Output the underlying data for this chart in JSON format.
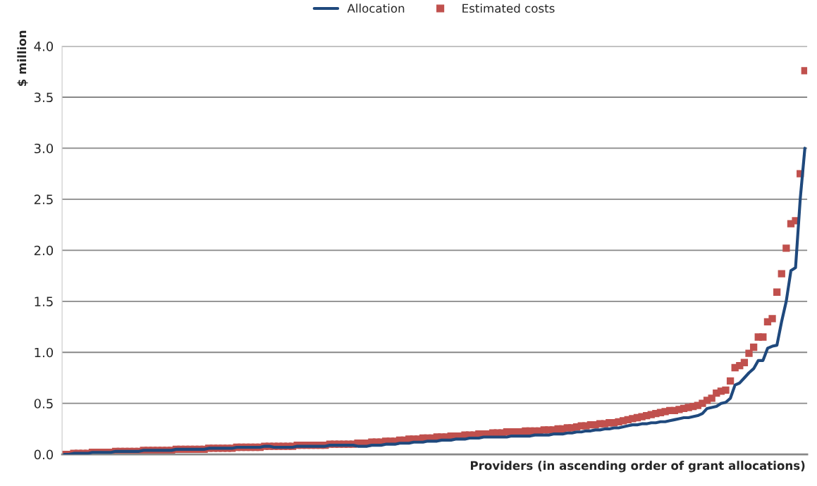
{
  "chart_data": {
    "type": "line",
    "xlabel": "Providers (in ascending order of grant allocations)",
    "ylabel": "$ million",
    "categories": [
      null,
      null,
      null,
      null,
      null,
      null,
      null,
      null,
      null,
      null,
      null,
      null,
      null,
      null,
      null,
      null,
      null,
      null,
      null,
      null,
      null,
      null,
      null,
      null,
      null,
      null,
      null,
      null,
      null,
      null,
      null,
      null,
      null,
      null,
      null,
      null,
      null,
      null,
      null,
      null,
      null,
      null,
      null,
      null,
      null,
      null,
      null,
      null,
      null,
      null,
      null,
      null,
      null,
      null,
      null,
      null,
      null,
      null,
      null,
      null,
      null,
      null,
      null,
      null,
      null,
      null,
      null,
      null,
      null,
      null,
      null,
      null,
      null,
      null,
      null,
      null,
      null,
      null,
      null,
      null,
      null,
      null,
      null,
      null,
      null,
      null,
      null,
      null,
      null,
      null,
      null,
      null,
      null,
      null,
      null,
      null,
      null,
      null,
      null,
      null,
      null,
      null,
      null,
      null,
      null,
      null,
      null,
      null,
      null,
      null,
      null,
      null,
      null,
      null,
      null,
      null,
      null,
      null,
      null,
      null,
      null,
      null,
      null,
      null,
      null,
      null,
      null,
      null,
      null,
      null,
      null,
      null,
      null,
      null,
      null,
      null,
      null,
      null,
      null,
      null,
      null,
      null,
      null,
      null,
      null,
      null,
      null,
      null,
      null,
      null,
      null,
      null,
      null,
      null,
      null,
      null,
      null,
      null,
      null,
      null
    ],
    "series": [
      {
        "name": "Allocation",
        "color": "#1f497d",
        "line_style": "solid",
        "values": [
          0.0,
          0.0,
          0.01,
          0.01,
          0.01,
          0.01,
          0.02,
          0.02,
          0.02,
          0.02,
          0.02,
          0.03,
          0.03,
          0.03,
          0.03,
          0.03,
          0.03,
          0.04,
          0.04,
          0.04,
          0.04,
          0.04,
          0.04,
          0.04,
          0.05,
          0.05,
          0.05,
          0.05,
          0.05,
          0.05,
          0.05,
          0.06,
          0.06,
          0.06,
          0.06,
          0.06,
          0.06,
          0.07,
          0.07,
          0.07,
          0.07,
          0.07,
          0.07,
          0.08,
          0.08,
          0.07,
          0.07,
          0.07,
          0.07,
          0.07,
          0.08,
          0.08,
          0.08,
          0.08,
          0.08,
          0.08,
          0.08,
          0.09,
          0.09,
          0.09,
          0.09,
          0.09,
          0.09,
          0.08,
          0.08,
          0.08,
          0.09,
          0.09,
          0.09,
          0.1,
          0.1,
          0.1,
          0.11,
          0.11,
          0.11,
          0.12,
          0.12,
          0.12,
          0.13,
          0.13,
          0.13,
          0.14,
          0.14,
          0.14,
          0.15,
          0.15,
          0.15,
          0.16,
          0.16,
          0.16,
          0.17,
          0.17,
          0.17,
          0.17,
          0.17,
          0.17,
          0.18,
          0.18,
          0.18,
          0.18,
          0.18,
          0.19,
          0.19,
          0.19,
          0.19,
          0.2,
          0.2,
          0.2,
          0.21,
          0.21,
          0.22,
          0.22,
          0.23,
          0.23,
          0.24,
          0.24,
          0.25,
          0.25,
          0.26,
          0.26,
          0.27,
          0.28,
          0.29,
          0.29,
          0.3,
          0.3,
          0.31,
          0.31,
          0.32,
          0.32,
          0.33,
          0.34,
          0.35,
          0.36,
          0.36,
          0.37,
          0.38,
          0.4,
          0.45,
          0.46,
          0.47,
          0.5,
          0.51,
          0.55,
          0.68,
          0.7,
          0.75,
          0.8,
          0.84,
          0.92,
          0.92,
          1.04,
          1.06,
          1.07,
          1.3,
          1.5,
          1.8,
          1.83,
          2.5,
          3.0
        ]
      },
      {
        "name": "Estimated costs",
        "type": "scatter",
        "color": "#c0504d",
        "marker": "square",
        "values": [
          0.0,
          0.0,
          0.01,
          0.01,
          0.01,
          0.01,
          0.02,
          0.02,
          0.02,
          0.02,
          0.02,
          0.03,
          0.03,
          0.03,
          0.03,
          0.03,
          0.03,
          0.04,
          0.04,
          0.04,
          0.04,
          0.04,
          0.04,
          0.04,
          0.05,
          0.05,
          0.05,
          0.05,
          0.05,
          0.05,
          0.05,
          0.06,
          0.06,
          0.06,
          0.06,
          0.06,
          0.06,
          0.07,
          0.07,
          0.07,
          0.07,
          0.07,
          0.07,
          0.08,
          0.08,
          0.08,
          0.08,
          0.08,
          0.08,
          0.08,
          0.09,
          0.09,
          0.09,
          0.09,
          0.09,
          0.09,
          0.09,
          0.1,
          0.1,
          0.1,
          0.1,
          0.1,
          0.1,
          0.11,
          0.11,
          0.11,
          0.12,
          0.12,
          0.12,
          0.13,
          0.13,
          0.13,
          0.14,
          0.14,
          0.15,
          0.15,
          0.15,
          0.16,
          0.16,
          0.16,
          0.17,
          0.17,
          0.17,
          0.18,
          0.18,
          0.18,
          0.19,
          0.19,
          0.19,
          0.2,
          0.2,
          0.2,
          0.21,
          0.21,
          0.21,
          0.22,
          0.22,
          0.22,
          0.22,
          0.23,
          0.23,
          0.23,
          0.23,
          0.24,
          0.24,
          0.24,
          0.25,
          0.25,
          0.26,
          0.26,
          0.27,
          0.28,
          0.28,
          0.29,
          0.29,
          0.3,
          0.3,
          0.31,
          0.31,
          0.32,
          0.33,
          0.34,
          0.35,
          0.36,
          0.37,
          0.38,
          0.39,
          0.4,
          0.41,
          0.42,
          0.43,
          0.43,
          0.44,
          0.45,
          0.46,
          0.47,
          0.48,
          0.5,
          0.53,
          0.55,
          0.6,
          0.62,
          0.63,
          0.72,
          0.85,
          0.87,
          0.9,
          0.99,
          1.05,
          1.15,
          1.15,
          1.3,
          1.33,
          1.59,
          1.77,
          2.02,
          2.26,
          2.29,
          2.75,
          3.76
        ]
      }
    ],
    "ylim": [
      0,
      4
    ],
    "yticks": [
      {
        "value": 0,
        "label": "0.0"
      },
      {
        "value": 0.5,
        "label": "0.5"
      },
      {
        "value": 1,
        "label": "1.0"
      },
      {
        "value": 1.5,
        "label": "1.5"
      },
      {
        "value": 2,
        "label": "2.0"
      },
      {
        "value": 2.5,
        "label": "2.5"
      },
      {
        "value": 3,
        "label": "3.0"
      },
      {
        "value": 3.5,
        "label": "3.5"
      },
      {
        "value": 4,
        "label": "4.0"
      }
    ],
    "grid": "y",
    "legend": "top"
  }
}
